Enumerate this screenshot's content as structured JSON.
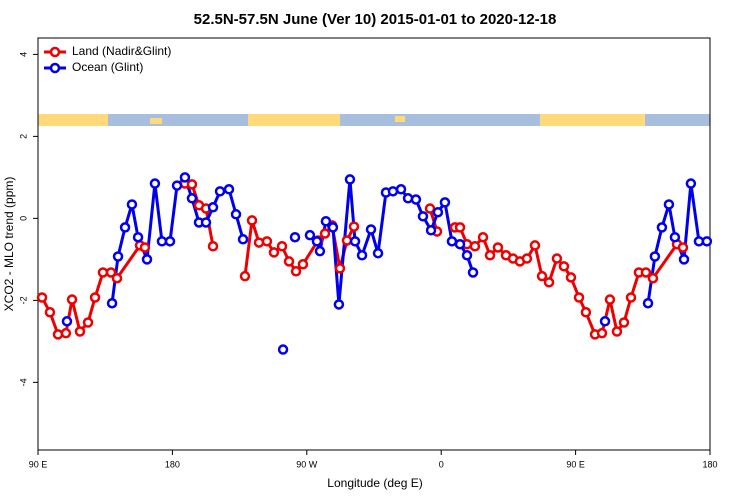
{
  "chart_data": {
    "type": "line",
    "title": "52.5N-57.5N June (Ver 10)   2015-01-01 to 2020-12-18",
    "xlabel": "Longitude (deg E)",
    "ylabel": "XCO2 - MLO trend (ppm)",
    "xlim": [
      90,
      540
    ],
    "xticks": [
      {
        "value": 90,
        "label": "90 E"
      },
      180,
      {
        "value": 270,
        "label": "90 W"
      },
      {
        "value": 360,
        "label": "0"
      },
      {
        "value": 450,
        "label": "90 E"
      },
      {
        "value": 540,
        "label": "180"
      }
    ],
    "ylim": [
      -5.65,
      4.4
    ],
    "yticks": [
      -4,
      -2,
      0,
      2,
      4
    ],
    "legend": "top-left",
    "series": [
      {
        "name": "Land (Nadir&Glint)",
        "color": "#ee0000",
        "x": [
          92.7,
          98.0,
          103.4,
          108.7,
          112.8,
          118.1,
          123.5,
          128.2,
          133.5,
          138.9,
          142.9,
          158.3,
          161.6,
          null,
          188.4,
          193.1,
          197.8,
          202.5,
          207.2,
          null,
          228.6,
          233.3,
          238.0,
          243.3,
          248.0,
          253.4,
          258.1,
          262.8,
          267.4,
          277.5,
          282.2,
          286.9,
          292.2,
          296.9,
          301.6,
          null,
          352.5,
          357.2,
          null,
          369.2,
          372.6,
          377.3,
          382.6,
          388.0,
          392.7,
          398.0,
          403.4,
          408.1,
          412.7,
          417.4,
          422.8,
          427.5,
          432.2,
          437.5,
          442.2,
          446.9,
          452.3,
          456.9,
          463.0,
          467.7,
          473.0,
          477.7,
          482.4,
          487.1,
          492.4,
          497.1,
          501.8,
          517.9,
          521.9
        ],
        "values": [
          -1.93,
          -2.29,
          -2.83,
          -2.8,
          -1.98,
          -2.76,
          -2.54,
          -1.93,
          -1.32,
          -1.32,
          -1.46,
          -0.66,
          -0.71,
          null,
          0.85,
          0.83,
          0.32,
          0.24,
          -0.68,
          null,
          -1.41,
          -0.05,
          -0.59,
          -0.56,
          -0.83,
          -0.68,
          -1.05,
          -1.29,
          -1.12,
          -0.54,
          -0.37,
          -0.17,
          -1.22,
          -0.54,
          -0.2,
          null,
          0.24,
          -0.32,
          null,
          -0.22,
          -0.22,
          -0.63,
          -0.68,
          -0.46,
          -0.9,
          -0.71,
          -0.9,
          -0.98,
          -1.05,
          -0.98,
          -0.66,
          -1.41,
          -1.56,
          -0.98,
          -1.17,
          -1.44,
          -1.93,
          -2.29,
          -2.83,
          -2.8,
          -1.98,
          -2.76,
          -2.54,
          -1.93,
          -1.32,
          -1.32,
          -1.46,
          -0.63,
          -0.71
        ]
      },
      {
        "name": "Ocean (Glint)",
        "color": "#0000ee",
        "x": [
          109.4,
          null,
          139.6,
          143.6,
          148.3,
          152.9,
          157.0,
          163.0,
          168.3,
          173.0,
          178.4,
          183.1,
          188.4,
          193.1,
          197.8,
          202.5,
          207.2,
          211.9,
          217.9,
          222.6,
          227.3,
          null,
          254.1,
          null,
          262.1,
          null,
          272.1,
          276.8,
          278.8,
          282.8,
          287.5,
          291.5,
          298.9,
          302.3,
          307.0,
          313.0,
          317.7,
          323.0,
          327.7,
          333.1,
          337.8,
          343.1,
          347.8,
          353.2,
          357.8,
          362.5,
          367.2,
          372.6,
          377.3,
          381.3,
          null,
          469.7,
          null,
          498.5,
          503.1,
          507.8,
          512.5,
          516.5,
          522.6,
          527.2,
          532.6,
          537.9
        ],
        "values": [
          -2.51,
          null,
          -2.07,
          -0.93,
          -0.22,
          0.34,
          -0.46,
          -1.0,
          0.85,
          -0.56,
          -0.56,
          0.8,
          1.0,
          0.49,
          -0.1,
          -0.1,
          0.27,
          0.66,
          0.71,
          0.1,
          -0.51,
          null,
          -3.2,
          null,
          -0.46,
          null,
          -0.41,
          -0.56,
          -0.8,
          -0.07,
          -0.22,
          -2.1,
          0.95,
          -0.56,
          -0.9,
          -0.27,
          -0.85,
          0.63,
          0.66,
          0.71,
          0.49,
          0.46,
          0.05,
          -0.29,
          0.15,
          0.39,
          -0.56,
          -0.63,
          -0.9,
          -1.32,
          null,
          -2.51,
          null,
          -2.07,
          -0.93,
          -0.22,
          0.34,
          -0.46,
          -1.0,
          0.85,
          -0.56,
          -0.56
        ]
      }
    ]
  }
}
